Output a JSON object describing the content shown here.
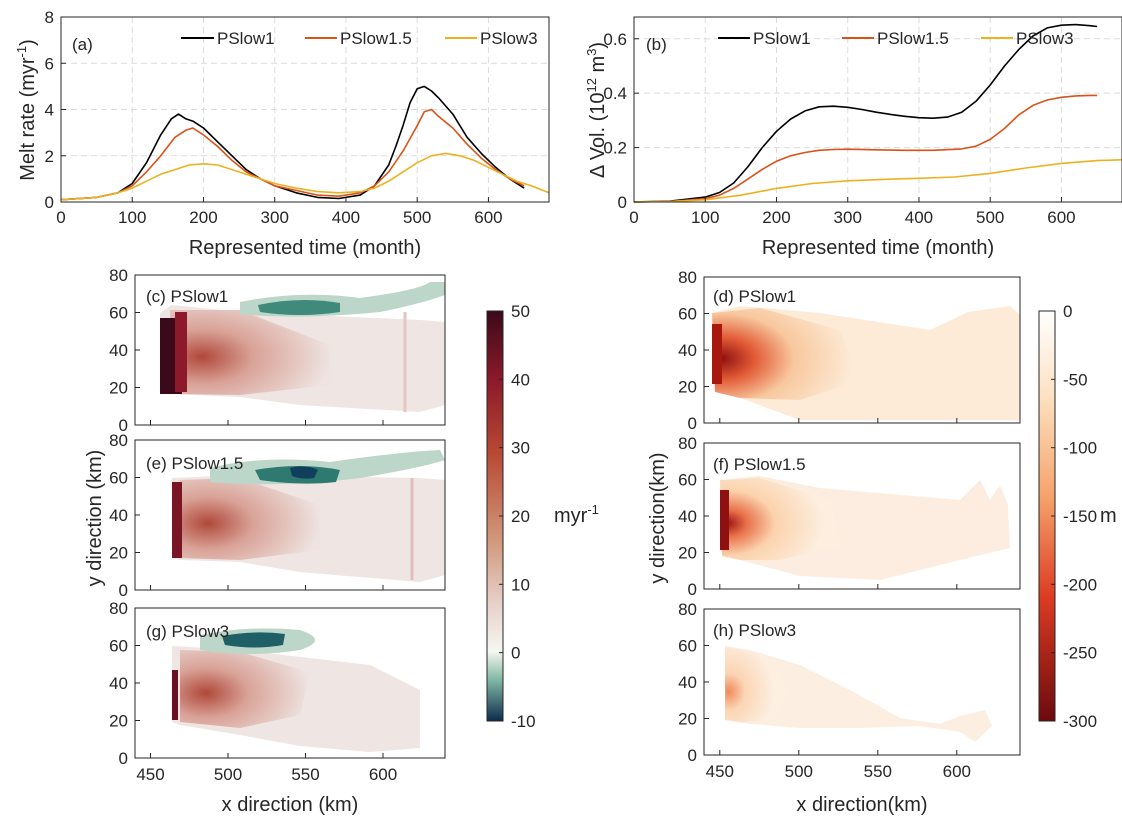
{
  "chart_data": [
    {
      "panel": "(a)",
      "type": "line",
      "xlabel": "Represented time (month)",
      "ylabel": "Melt rate (myr",
      "ylabel_sup": "-1",
      "ylabel_tail": ")",
      "xlim": [
        0,
        685
      ],
      "ylim": [
        0,
        8
      ],
      "xticks": [
        0,
        100,
        200,
        300,
        400,
        500,
        600
      ],
      "yticks": [
        0,
        2,
        4,
        6,
        8
      ],
      "grid": true,
      "legend_position": "top",
      "series": [
        {
          "name": "PSlow1",
          "color": "#000000",
          "x": [
            0,
            50,
            80,
            100,
            120,
            140,
            155,
            165,
            175,
            185,
            200,
            220,
            240,
            260,
            280,
            300,
            330,
            360,
            390,
            420,
            440,
            460,
            470,
            480,
            490,
            500,
            510,
            520,
            530,
            550,
            570,
            590,
            610,
            630,
            650
          ],
          "y": [
            0.1,
            0.2,
            0.4,
            0.8,
            1.7,
            2.9,
            3.6,
            3.8,
            3.6,
            3.5,
            3.2,
            2.6,
            2.0,
            1.4,
            1.0,
            0.7,
            0.4,
            0.2,
            0.15,
            0.3,
            0.7,
            1.6,
            2.4,
            3.3,
            4.3,
            4.9,
            5.0,
            4.8,
            4.5,
            3.8,
            2.8,
            2.1,
            1.5,
            1.0,
            0.6
          ]
        },
        {
          "name": "PSlow1.5",
          "color": "#d95319",
          "x": [
            0,
            50,
            80,
            100,
            120,
            140,
            160,
            175,
            185,
            200,
            220,
            240,
            260,
            280,
            300,
            330,
            360,
            390,
            420,
            440,
            460,
            480,
            500,
            510,
            520,
            530,
            550,
            570,
            590,
            610,
            630,
            650
          ],
          "y": [
            0.1,
            0.2,
            0.4,
            0.7,
            1.3,
            2.0,
            2.8,
            3.1,
            3.2,
            2.9,
            2.4,
            1.8,
            1.3,
            1.0,
            0.7,
            0.5,
            0.3,
            0.25,
            0.4,
            0.7,
            1.3,
            2.2,
            3.3,
            3.9,
            4.0,
            3.7,
            3.2,
            2.5,
            1.9,
            1.4,
            1.0,
            0.7
          ]
        },
        {
          "name": "PSlow3",
          "color": "#edb120",
          "x": [
            0,
            50,
            80,
            100,
            120,
            140,
            160,
            180,
            200,
            220,
            240,
            260,
            280,
            300,
            330,
            360,
            390,
            420,
            440,
            460,
            480,
            500,
            520,
            540,
            560,
            580,
            600,
            620,
            640,
            660,
            685
          ],
          "y": [
            0.1,
            0.2,
            0.4,
            0.6,
            0.9,
            1.2,
            1.4,
            1.6,
            1.65,
            1.6,
            1.4,
            1.2,
            1.0,
            0.8,
            0.6,
            0.45,
            0.4,
            0.45,
            0.6,
            0.9,
            1.3,
            1.7,
            2.0,
            2.1,
            2.0,
            1.8,
            1.5,
            1.2,
            0.9,
            0.7,
            0.4
          ]
        }
      ]
    },
    {
      "panel": "(b)",
      "type": "line",
      "xlabel": "Represented time (month)",
      "ylabel_pre": "Δ Vol. (10",
      "ylabel_sup1": "12",
      "ylabel_mid": " m",
      "ylabel_sup2": "3",
      "ylabel_tail": ")",
      "xlim": [
        0,
        685
      ],
      "ylim": [
        0,
        0.68
      ],
      "xticks": [
        0,
        100,
        200,
        300,
        400,
        500,
        600
      ],
      "yticks": [
        0,
        0.2,
        0.4,
        0.6
      ],
      "grid": true,
      "legend_position": "top",
      "series": [
        {
          "name": "PSlow1",
          "color": "#000000",
          "x": [
            0,
            50,
            100,
            120,
            140,
            160,
            180,
            200,
            220,
            240,
            260,
            280,
            300,
            320,
            340,
            360,
            380,
            400,
            420,
            440,
            460,
            480,
            500,
            520,
            540,
            560,
            580,
            600,
            620,
            640,
            650
          ],
          "y": [
            0,
            0.003,
            0.018,
            0.035,
            0.07,
            0.13,
            0.2,
            0.26,
            0.305,
            0.335,
            0.35,
            0.352,
            0.348,
            0.34,
            0.33,
            0.322,
            0.315,
            0.31,
            0.308,
            0.312,
            0.33,
            0.37,
            0.43,
            0.5,
            0.56,
            0.61,
            0.64,
            0.65,
            0.652,
            0.648,
            0.645
          ]
        },
        {
          "name": "PSlow1.5",
          "color": "#d95319",
          "x": [
            0,
            50,
            100,
            120,
            140,
            160,
            180,
            200,
            220,
            240,
            260,
            280,
            300,
            340,
            380,
            420,
            460,
            480,
            500,
            520,
            540,
            560,
            580,
            600,
            620,
            640,
            650
          ],
          "y": [
            0,
            0.002,
            0.012,
            0.025,
            0.05,
            0.085,
            0.12,
            0.15,
            0.17,
            0.182,
            0.19,
            0.193,
            0.194,
            0.192,
            0.19,
            0.19,
            0.195,
            0.205,
            0.23,
            0.27,
            0.32,
            0.355,
            0.375,
            0.385,
            0.39,
            0.392,
            0.392
          ]
        },
        {
          "name": "PSlow3",
          "color": "#edb120",
          "x": [
            0,
            50,
            100,
            150,
            200,
            250,
            300,
            350,
            400,
            450,
            500,
            550,
            600,
            650,
            685
          ],
          "y": [
            0,
            0.002,
            0.008,
            0.025,
            0.05,
            0.068,
            0.078,
            0.083,
            0.087,
            0.092,
            0.105,
            0.125,
            0.142,
            0.152,
            0.155
          ]
        }
      ]
    },
    {
      "type": "heatmap",
      "panels": [
        {
          "label": "(c) PSlow1"
        },
        {
          "label": "(e) PSlow1.5"
        },
        {
          "label": "(g) PSlow3"
        }
      ],
      "xlabel": "x direction (km)",
      "ylabel": "y direction (km)",
      "xlim": [
        440,
        640
      ],
      "ylim": [
        0,
        80
      ],
      "xticks": [
        450,
        500,
        550,
        600
      ],
      "yticks": [
        0,
        20,
        40,
        60,
        80
      ],
      "colorbar": {
        "ticks": [
          50,
          40,
          30,
          20,
          10,
          0,
          -10
        ],
        "range": [
          -10,
          50
        ],
        "unit": "myr",
        "unit_sup": "-1"
      }
    },
    {
      "type": "heatmap",
      "panels": [
        {
          "label": "(d) PSlow1"
        },
        {
          "label": "(f)  PSlow1.5"
        },
        {
          "label": "(h) PSlow3"
        }
      ],
      "xlabel": "x direction(km)",
      "ylabel": "y direction(km)",
      "xlim": [
        440,
        640
      ],
      "ylim": [
        0,
        80
      ],
      "xticks": [
        450,
        500,
        550,
        600
      ],
      "yticks": [
        0,
        20,
        40,
        60,
        80
      ],
      "colorbar": {
        "ticks": [
          0,
          -50,
          -100,
          -150,
          -200,
          -250,
          -300
        ],
        "range": [
          -300,
          0
        ],
        "unit": "m"
      }
    }
  ]
}
